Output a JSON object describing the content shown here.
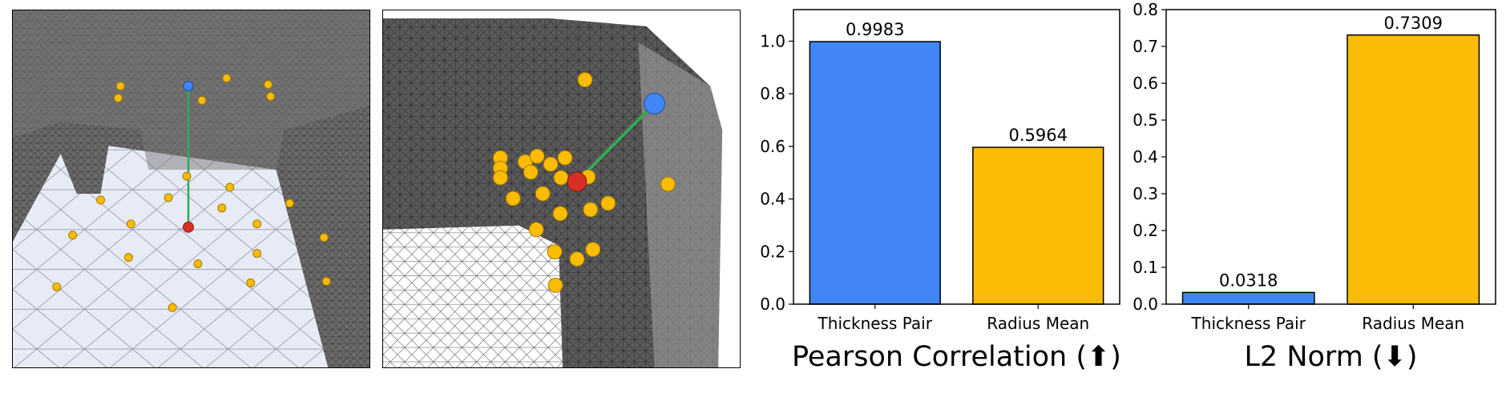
{
  "images": [
    {
      "description_icon": "mesh-view-front"
    },
    {
      "description_icon": "mesh-view-closeup"
    }
  ],
  "colors": {
    "blue": "#4285f4",
    "gold": "#fbbc05",
    "red": "#d93025",
    "green": "#34a853",
    "mesh_dark": "#5a5a5a",
    "floor": "#e4e9f4"
  },
  "chart_data": [
    {
      "type": "bar",
      "title": "Pearson Correlation (⬆)",
      "categories": [
        "Thickness Pair",
        "Radius Mean"
      ],
      "values": [
        0.9983,
        0.5964
      ],
      "data_labels": [
        "0.9983",
        "0.5964"
      ],
      "bar_colors": [
        "#4285f4",
        "#fbbc05"
      ],
      "ylim": [
        0,
        1.12
      ],
      "yticks": [
        0.0,
        0.2,
        0.4,
        0.6,
        0.8,
        1.0
      ],
      "ytick_labels": [
        "0.0",
        "0.2",
        "0.4",
        "0.6",
        "0.8",
        "1.0"
      ],
      "xlabel": "",
      "ylabel": "",
      "grid": false
    },
    {
      "type": "bar",
      "title": "L2 Norm (⬇)",
      "categories": [
        "Thickness Pair",
        "Radius Mean"
      ],
      "values": [
        0.0318,
        0.7309
      ],
      "data_labels": [
        "0.0318",
        "0.7309"
      ],
      "bar_colors": [
        "#4285f4",
        "#fbbc05"
      ],
      "ylim": [
        0,
        0.8
      ],
      "yticks": [
        0.0,
        0.1,
        0.2,
        0.3,
        0.4,
        0.5,
        0.6,
        0.7,
        0.8
      ],
      "ytick_labels": [
        "0.0",
        "0.1",
        "0.2",
        "0.3",
        "0.4",
        "0.5",
        "0.6",
        "0.7",
        "0.8"
      ],
      "xlabel": "",
      "ylabel": "",
      "grid": false
    }
  ]
}
